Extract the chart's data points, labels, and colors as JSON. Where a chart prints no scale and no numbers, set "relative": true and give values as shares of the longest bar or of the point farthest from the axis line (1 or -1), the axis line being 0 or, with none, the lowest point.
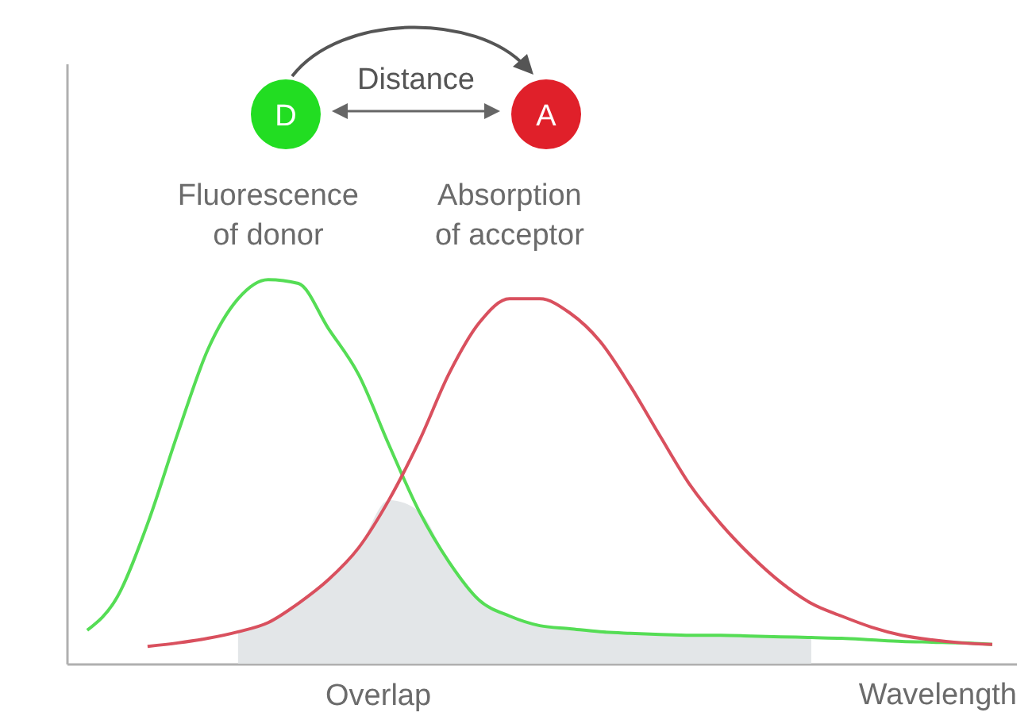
{
  "chart_data": {
    "type": "line",
    "relative": true,
    "xlabel": "Wavelength",
    "categories": [
      null,
      null,
      null,
      null,
      null,
      null,
      null,
      null,
      null,
      null,
      null,
      null,
      null,
      null,
      null,
      null,
      null,
      null,
      null,
      null,
      null,
      null,
      null,
      null,
      null,
      null,
      null,
      null,
      null,
      null,
      null
    ],
    "series": [
      {
        "type": "area",
        "color": "#e3e6e8",
        "values": [
          null,
          null,
          null,
          null,
          null,
          0.083,
          0.107,
          0.157,
          0.219,
          0.302,
          0.426,
          0.397,
          0.264,
          0.165,
          0.124,
          0.099,
          0.091,
          0.083,
          0.079,
          0.076,
          0.074,
          0.074,
          0.072,
          0.07,
          0.068,
          null,
          null,
          null,
          null,
          null,
          null
        ]
      },
      {
        "name": "Fluorescence of donor",
        "color": "#55dd55",
        "values": [
          0.087,
          0.174,
          0.364,
          0.599,
          0.818,
          0.95,
          1.0,
          0.99,
          0.872,
          0.752,
          0.57,
          0.397,
          0.264,
          0.165,
          0.124,
          0.099,
          0.091,
          0.083,
          0.079,
          0.076,
          0.074,
          0.074,
          0.072,
          0.07,
          0.068,
          0.066,
          0.062,
          0.058,
          0.056,
          0.054,
          0.05
        ]
      },
      {
        "name": "Absorption of acceptor",
        "color": "#d9505e",
        "values": [
          null,
          null,
          0.045,
          0.054,
          0.066,
          0.083,
          0.107,
          0.157,
          0.219,
          0.302,
          0.426,
          0.579,
          0.756,
          0.888,
          0.95,
          0.95,
          0.913,
          0.839,
          0.723,
          0.591,
          0.463,
          0.364,
          0.281,
          0.211,
          0.157,
          0.124,
          0.095,
          0.074,
          0.062,
          0.054,
          0.05
        ]
      }
    ],
    "annotations": [
      "Distance",
      "D",
      "A",
      "Overlap"
    ]
  }
}
